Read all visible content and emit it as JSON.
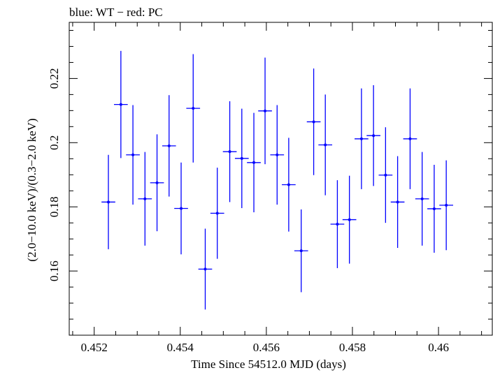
{
  "chart_data": {
    "type": "scatter",
    "title": "blue: WT − red: PC",
    "xlabel": "Time Since 54512.0 MJD (days)",
    "ylabel": "(2.0−10.0 keV)/(0.3−2.0 keV)",
    "xlim": [
      0.45142,
      0.46125
    ],
    "ylim": [
      0.14,
      0.2375
    ],
    "x_ticks": [
      0.452,
      0.454,
      0.456,
      0.458,
      0.46
    ],
    "x_tick_labels": [
      "0.452",
      "0.454",
      "0.456",
      "0.458",
      "0.46"
    ],
    "y_ticks": [
      0.16,
      0.18,
      0.2,
      0.22
    ],
    "y_tick_labels": [
      "0.16",
      "0.18",
      "0.2",
      "0.22"
    ],
    "grid": false,
    "series": [
      {
        "color": "#0000ff",
        "points": [
          {
            "x": 0.45233,
            "y": 0.1815,
            "xerr": 0.00016,
            "yerr": 0.0147
          },
          {
            "x": 0.45262,
            "y": 0.2119,
            "xerr": 0.00016,
            "yerr": 0.0167
          },
          {
            "x": 0.4529,
            "y": 0.1962,
            "xerr": 0.00016,
            "yerr": 0.0155
          },
          {
            "x": 0.45318,
            "y": 0.1825,
            "xerr": 0.00016,
            "yerr": 0.0146
          },
          {
            "x": 0.45346,
            "y": 0.1875,
            "xerr": 0.00016,
            "yerr": 0.0151
          },
          {
            "x": 0.45374,
            "y": 0.199,
            "xerr": 0.00016,
            "yerr": 0.0158
          },
          {
            "x": 0.45402,
            "y": 0.1795,
            "xerr": 0.00016,
            "yerr": 0.0143
          },
          {
            "x": 0.4543,
            "y": 0.2107,
            "xerr": 0.00016,
            "yerr": 0.0169
          },
          {
            "x": 0.45458,
            "y": 0.1606,
            "xerr": 0.00016,
            "yerr": 0.0126
          },
          {
            "x": 0.45486,
            "y": 0.178,
            "xerr": 0.00016,
            "yerr": 0.0142
          },
          {
            "x": 0.45515,
            "y": 0.1972,
            "xerr": 0.00016,
            "yerr": 0.0157
          },
          {
            "x": 0.45543,
            "y": 0.1951,
            "xerr": 0.00016,
            "yerr": 0.0155
          },
          {
            "x": 0.45571,
            "y": 0.1938,
            "xerr": 0.00016,
            "yerr": 0.0155
          },
          {
            "x": 0.45597,
            "y": 0.2099,
            "xerr": 0.00016,
            "yerr": 0.0166
          },
          {
            "x": 0.45625,
            "y": 0.1962,
            "xerr": 0.00016,
            "yerr": 0.0155
          },
          {
            "x": 0.45652,
            "y": 0.1869,
            "xerr": 0.00016,
            "yerr": 0.0146
          },
          {
            "x": 0.45681,
            "y": 0.1663,
            "xerr": 0.00016,
            "yerr": 0.0129
          },
          {
            "x": 0.4571,
            "y": 0.2065,
            "xerr": 0.00016,
            "yerr": 0.0166
          },
          {
            "x": 0.45737,
            "y": 0.1993,
            "xerr": 0.00016,
            "yerr": 0.0157
          },
          {
            "x": 0.45765,
            "y": 0.1746,
            "xerr": 0.00016,
            "yerr": 0.0137
          },
          {
            "x": 0.45793,
            "y": 0.176,
            "xerr": 0.00016,
            "yerr": 0.0137
          },
          {
            "x": 0.45821,
            "y": 0.2012,
            "xerr": 0.00016,
            "yerr": 0.0157
          },
          {
            "x": 0.45849,
            "y": 0.2022,
            "xerr": 0.00016,
            "yerr": 0.0157
          },
          {
            "x": 0.45877,
            "y": 0.1899,
            "xerr": 0.00016,
            "yerr": 0.0149
          },
          {
            "x": 0.45905,
            "y": 0.1815,
            "xerr": 0.00016,
            "yerr": 0.0143
          },
          {
            "x": 0.45934,
            "y": 0.2012,
            "xerr": 0.00016,
            "yerr": 0.0157
          },
          {
            "x": 0.45962,
            "y": 0.1825,
            "xerr": 0.00016,
            "yerr": 0.0146
          },
          {
            "x": 0.4599,
            "y": 0.1794,
            "xerr": 0.00016,
            "yerr": 0.0137
          },
          {
            "x": 0.46018,
            "y": 0.1805,
            "xerr": 0.00016,
            "yerr": 0.014
          }
        ]
      }
    ]
  }
}
